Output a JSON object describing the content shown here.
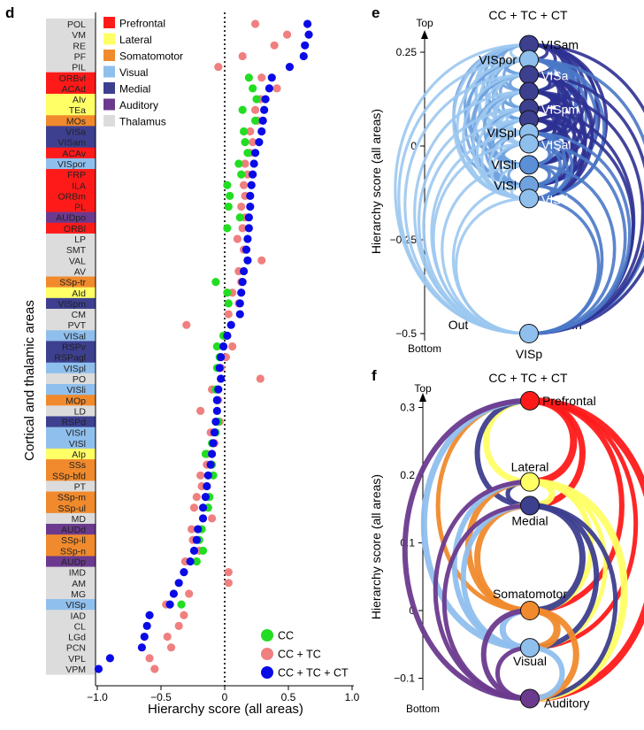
{
  "panels": {
    "d": {
      "letter": "d",
      "xlabel": "Hierarchy score (all areas)",
      "ylabel": "Cortical and thalamic areas",
      "xticks": [
        "−1.0",
        "−0.5",
        "0",
        "0.5",
        "1.0"
      ]
    },
    "e": {
      "letter": "e",
      "title": "CC + TC + CT",
      "ylabel": "Hierarchy score (all areas)",
      "top": "Top",
      "bottom": "Bottom",
      "out": "Out",
      "in": "In",
      "yticks": [
        "0.25",
        "0",
        "−0.25",
        "−0.5"
      ]
    },
    "f": {
      "letter": "f",
      "title": "CC + TC + CT",
      "ylabel": "Hierarchy score (all areas)",
      "top": "Top",
      "bottom": "Bottom",
      "yticks": [
        "0.3",
        "0.2",
        "0.1",
        "0",
        "−0.1"
      ]
    }
  },
  "colors": {
    "Prefrontal": "#ff1a1a",
    "Lateral": "#ffff66",
    "Somatomotor": "#f08a2c",
    "Visual": "#8fbfed",
    "Medial": "#3d3f8f",
    "Auditory": "#6b3a8e",
    "Thalamus": "#dcdcdc",
    "CC": "#22dd22",
    "CC_TC": "#f07f7f",
    "CC_TC_CT": "#0a0ae6"
  },
  "module_legend": [
    "Prefrontal",
    "Lateral",
    "Somatomotor",
    "Visual",
    "Medial",
    "Auditory",
    "Thalamus"
  ],
  "chart_data": [
    {
      "panel": "d",
      "type": "scatter",
      "xlabel": "Hierarchy score (all areas)",
      "ylabel": "Cortical and thalamic areas",
      "xlim": [
        -1.0,
        1.0
      ],
      "legend_placement": "bottom-right",
      "series_names": [
        "CC",
        "CC + TC",
        "CC + TC + CT"
      ],
      "areas": [
        {
          "name": "POL",
          "module": "Thalamus",
          "cc": null,
          "tc": 0.24,
          "ct": 0.65
        },
        {
          "name": "VM",
          "module": "Thalamus",
          "cc": null,
          "tc": 0.49,
          "ct": 0.66
        },
        {
          "name": "RE",
          "module": "Thalamus",
          "cc": null,
          "tc": 0.39,
          "ct": 0.63
        },
        {
          "name": "PF",
          "module": "Thalamus",
          "cc": null,
          "tc": 0.14,
          "ct": 0.62
        },
        {
          "name": "PIL",
          "module": "Thalamus",
          "cc": null,
          "tc": -0.05,
          "ct": 0.51
        },
        {
          "name": "ORBvl",
          "module": "Prefrontal",
          "cc": 0.19,
          "tc": 0.29,
          "ct": 0.37
        },
        {
          "name": "ACAd",
          "module": "Prefrontal",
          "cc": 0.22,
          "tc": 0.41,
          "ct": 0.35
        },
        {
          "name": "AIv",
          "module": "Lateral",
          "cc": 0.25,
          "tc": 0.28,
          "ct": 0.32
        },
        {
          "name": "TEa",
          "module": "Lateral",
          "cc": 0.14,
          "tc": 0.24,
          "ct": 0.31
        },
        {
          "name": "MOs",
          "module": "Somatomotor",
          "cc": 0.24,
          "tc": 0.26,
          "ct": 0.3
        },
        {
          "name": "VISa",
          "module": "Medial",
          "cc": 0.15,
          "tc": 0.2,
          "ct": 0.29
        },
        {
          "name": "VISam",
          "module": "Medial",
          "cc": 0.16,
          "tc": 0.22,
          "ct": 0.27
        },
        {
          "name": "ACAv",
          "module": "Prefrontal",
          "cc": 0.18,
          "tc": 0.2,
          "ct": 0.24
        },
        {
          "name": "VISpor",
          "module": "Visual",
          "cc": 0.11,
          "tc": 0.16,
          "ct": 0.23
        },
        {
          "name": "FRP",
          "module": "Prefrontal",
          "cc": 0.13,
          "tc": 0.18,
          "ct": 0.22
        },
        {
          "name": "ILA",
          "module": "Prefrontal",
          "cc": 0.02,
          "tc": 0.15,
          "ct": 0.21
        },
        {
          "name": "ORBm",
          "module": "Prefrontal",
          "cc": 0.04,
          "tc": 0.16,
          "ct": 0.2
        },
        {
          "name": "PL",
          "module": "Prefrontal",
          "cc": 0.03,
          "tc": 0.13,
          "ct": 0.2
        },
        {
          "name": "AUDpo",
          "module": "Auditory",
          "cc": 0.12,
          "tc": 0.16,
          "ct": 0.19
        },
        {
          "name": "ORBl",
          "module": "Prefrontal",
          "cc": 0.02,
          "tc": 0.14,
          "ct": 0.19
        },
        {
          "name": "LP",
          "module": "Thalamus",
          "cc": null,
          "tc": 0.1,
          "ct": 0.18
        },
        {
          "name": "SMT",
          "module": "Thalamus",
          "cc": null,
          "tc": 0.15,
          "ct": 0.17
        },
        {
          "name": "VAL",
          "module": "Thalamus",
          "cc": null,
          "tc": 0.29,
          "ct": 0.18
        },
        {
          "name": "AV",
          "module": "Thalamus",
          "cc": null,
          "tc": 0.11,
          "ct": 0.15
        },
        {
          "name": "SSp-tr",
          "module": "Somatomotor",
          "cc": -0.07,
          "tc": 0.13,
          "ct": 0.14
        },
        {
          "name": "AId",
          "module": "Lateral",
          "cc": 0.02,
          "tc": 0.06,
          "ct": 0.13
        },
        {
          "name": "VISpm",
          "module": "Medial",
          "cc": 0.03,
          "tc": 0.11,
          "ct": 0.12
        },
        {
          "name": "CM",
          "module": "Thalamus",
          "cc": null,
          "tc": 0.03,
          "ct": 0.12
        },
        {
          "name": "PVT",
          "module": "Thalamus",
          "cc": null,
          "tc": -0.3,
          "ct": 0.05
        },
        {
          "name": "VISal",
          "module": "Visual",
          "cc": -0.01,
          "tc": 0.01,
          "ct": 0.02
        },
        {
          "name": "RSPv",
          "module": "Medial",
          "cc": -0.06,
          "tc": 0.06,
          "ct": -0.01
        },
        {
          "name": "RSPagl",
          "module": "Medial",
          "cc": -0.04,
          "tc": 0.01,
          "ct": -0.03
        },
        {
          "name": "VISpl",
          "module": "Visual",
          "cc": -0.06,
          "tc": -0.03,
          "ct": -0.04
        },
        {
          "name": "PO",
          "module": "Thalamus",
          "cc": null,
          "tc": 0.28,
          "ct": -0.03
        },
        {
          "name": "VISli",
          "module": "Visual",
          "cc": -0.07,
          "tc": -0.1,
          "ct": -0.05
        },
        {
          "name": "MOp",
          "module": "Somatomotor",
          "cc": -0.06,
          "tc": -0.05,
          "ct": -0.06
        },
        {
          "name": "LD",
          "module": "Thalamus",
          "cc": null,
          "tc": -0.19,
          "ct": -0.06
        },
        {
          "name": "RSPd",
          "module": "Medial",
          "cc": -0.05,
          "tc": -0.04,
          "ct": -0.07
        },
        {
          "name": "VISrl",
          "module": "Visual",
          "cc": -0.07,
          "tc": -0.11,
          "ct": -0.08
        },
        {
          "name": "VISl",
          "module": "Visual",
          "cc": -0.1,
          "tc": -0.08,
          "ct": -0.09
        },
        {
          "name": "AIp",
          "module": "Lateral",
          "cc": -0.15,
          "tc": -0.14,
          "ct": -0.1
        },
        {
          "name": "SSs",
          "module": "Somatomotor",
          "cc": -0.1,
          "tc": -0.14,
          "ct": -0.11
        },
        {
          "name": "SSp-bfd",
          "module": "Somatomotor",
          "cc": -0.09,
          "tc": -0.19,
          "ct": -0.13
        },
        {
          "name": "PT",
          "module": "Thalamus",
          "cc": null,
          "tc": -0.18,
          "ct": -0.14
        },
        {
          "name": "SSp-m",
          "module": "Somatomotor",
          "cc": -0.12,
          "tc": -0.22,
          "ct": -0.15
        },
        {
          "name": "SSp-ul",
          "module": "Somatomotor",
          "cc": -0.13,
          "tc": -0.24,
          "ct": -0.17
        },
        {
          "name": "MD",
          "module": "Thalamus",
          "cc": null,
          "tc": -0.1,
          "ct": -0.17
        },
        {
          "name": "AUDd",
          "module": "Auditory",
          "cc": -0.18,
          "tc": -0.26,
          "ct": -0.21
        },
        {
          "name": "SSp-ll",
          "module": "Somatomotor",
          "cc": -0.2,
          "tc": -0.25,
          "ct": -0.22
        },
        {
          "name": "SSp-n",
          "module": "Somatomotor",
          "cc": -0.17,
          "tc": -0.2,
          "ct": -0.24
        },
        {
          "name": "AUDp",
          "module": "Auditory",
          "cc": -0.22,
          "tc": -0.31,
          "ct": -0.27
        },
        {
          "name": "IMD",
          "module": "Thalamus",
          "cc": null,
          "tc": 0.03,
          "ct": -0.32
        },
        {
          "name": "AM",
          "module": "Thalamus",
          "cc": null,
          "tc": 0.03,
          "ct": -0.36
        },
        {
          "name": "MG",
          "module": "Thalamus",
          "cc": null,
          "tc": -0.28,
          "ct": -0.4
        },
        {
          "name": "VISp",
          "module": "Visual",
          "cc": -0.34,
          "tc": -0.46,
          "ct": -0.43
        },
        {
          "name": "IAD",
          "module": "Thalamus",
          "cc": null,
          "tc": -0.32,
          "ct": -0.59
        },
        {
          "name": "CL",
          "module": "Thalamus",
          "cc": null,
          "tc": -0.36,
          "ct": -0.61
        },
        {
          "name": "LGd",
          "module": "Thalamus",
          "cc": null,
          "tc": -0.45,
          "ct": -0.63
        },
        {
          "name": "PCN",
          "module": "Thalamus",
          "cc": null,
          "tc": -0.42,
          "ct": -0.65
        },
        {
          "name": "VPL",
          "module": "Thalamus",
          "cc": null,
          "tc": -0.59,
          "ct": -0.9
        },
        {
          "name": "VPM",
          "module": "Thalamus",
          "cc": null,
          "tc": -0.55,
          "ct": -0.99
        }
      ]
    },
    {
      "panel": "e",
      "type": "network",
      "title": "CC + TC + CT",
      "ylabel": "Hierarchy score (all areas)",
      "ylim": [
        -0.5,
        0.3
      ],
      "nodes": [
        {
          "label": "VISam",
          "score": 0.27,
          "color": "#3d3f8f",
          "label_side": "right"
        },
        {
          "label": "VISpor",
          "score": 0.23,
          "color": "#8fbfed",
          "label_side": "left"
        },
        {
          "label": "VISa",
          "score": 0.19,
          "color": "#3d3f8f",
          "label_side": "inside-right"
        },
        {
          "label": "",
          "score": 0.145,
          "color": "#3d3f8f",
          "label_side": "none"
        },
        {
          "label": "VISpm",
          "score": 0.1,
          "color": "#3d3f8f",
          "label_side": "inside-right"
        },
        {
          "label": "",
          "score": 0.07,
          "color": "#3d3f8f",
          "label_side": "none"
        },
        {
          "label": "VISpl",
          "score": 0.035,
          "color": "#8fbfed",
          "label_side": "left"
        },
        {
          "label": "VISal",
          "score": 0.006,
          "color": "#8fbfed",
          "label_side": "inside-right"
        },
        {
          "label": "VISli",
          "score": -0.05,
          "color": "#5b8fd6",
          "label_side": "left"
        },
        {
          "label": "VISl",
          "score": -0.105,
          "color": "#6fa2df",
          "label_side": "left"
        },
        {
          "label": "VISrl",
          "score": -0.14,
          "color": "#8fbfed",
          "label_side": "inside-right"
        },
        {
          "label": "VISp",
          "score": -0.5,
          "color": "#8fbfed",
          "label_side": "below"
        }
      ]
    },
    {
      "panel": "f",
      "type": "network",
      "title": "CC + TC + CT",
      "ylabel": "Hierarchy score (all areas)",
      "ylim": [
        -0.12,
        0.32
      ],
      "nodes": [
        {
          "label": "Prefrontal",
          "score": 0.31,
          "color": "#ff1a1a"
        },
        {
          "label": "Lateral",
          "score": 0.19,
          "color": "#ffff66"
        },
        {
          "label": "Medial",
          "score": 0.155,
          "color": "#3d3f8f"
        },
        {
          "label": "Somatomotor",
          "score": 0.0,
          "color": "#f08a2c"
        },
        {
          "label": "Visual",
          "score": -0.055,
          "color": "#8fbfed"
        },
        {
          "label": "Auditory",
          "score": -0.13,
          "color": "#6b3a8e"
        }
      ]
    }
  ]
}
